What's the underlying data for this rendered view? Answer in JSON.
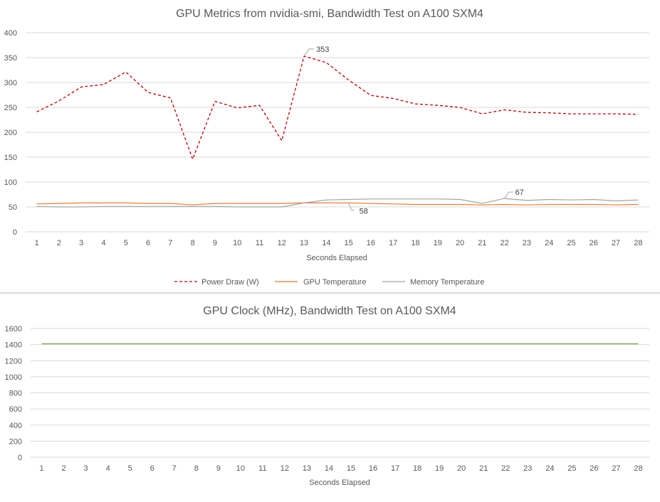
{
  "chart_data": [
    {
      "type": "line",
      "title": "GPU Metrics from nvidia-smi, Bandwidth Test on A100 SXM4",
      "xlabel": "Seconds Elapsed",
      "ylabel": "",
      "ylim": [
        0,
        400
      ],
      "yticks": [
        0,
        50,
        100,
        150,
        200,
        250,
        300,
        350,
        400
      ],
      "grid": true,
      "legend_position": "bottom",
      "categories": [
        1,
        2,
        3,
        4,
        5,
        6,
        7,
        8,
        9,
        10,
        11,
        12,
        13,
        14,
        15,
        16,
        17,
        18,
        19,
        20,
        21,
        22,
        23,
        24,
        25,
        26,
        27,
        28
      ],
      "series": [
        {
          "name": "Power Draw (W)",
          "color": "#c00000",
          "dash": "dashed",
          "values": [
            241,
            263,
            291,
            296,
            321,
            280,
            269,
            146,
            262,
            249,
            254,
            183,
            353,
            340,
            305,
            274,
            268,
            257,
            254,
            250,
            237,
            245,
            240,
            239,
            237,
            237,
            237,
            236
          ]
        },
        {
          "name": "GPU Temperature",
          "color": "#ed7d31",
          "dash": "solid",
          "values": [
            56,
            57,
            58,
            58,
            58,
            57,
            57,
            54,
            57,
            57,
            57,
            57,
            58,
            58,
            58,
            57,
            56,
            55,
            55,
            55,
            54,
            55,
            54,
            55,
            55,
            55,
            54,
            55
          ]
        },
        {
          "name": "Memory Temperature",
          "color": "#a5a5a5",
          "dash": "solid",
          "values": [
            51,
            50,
            50,
            51,
            51,
            51,
            51,
            51,
            51,
            50,
            50,
            50,
            58,
            64,
            65,
            66,
            66,
            66,
            66,
            65,
            57,
            67,
            63,
            65,
            64,
            65,
            62,
            64
          ]
        }
      ],
      "annotations": [
        {
          "series": "Power Draw (W)",
          "x": 13,
          "text": "353"
        },
        {
          "series": "GPU Temperature",
          "x": 15,
          "text": "58"
        },
        {
          "series": "Memory Temperature",
          "x": 22,
          "text": "67"
        }
      ]
    },
    {
      "type": "line",
      "title": "GPU Clock (MHz), Bandwidth Test on A100 SXM4",
      "xlabel": "Seconds Elapsed",
      "ylabel": "",
      "ylim": [
        0,
        1600
      ],
      "yticks": [
        0,
        200,
        400,
        600,
        800,
        1000,
        1200,
        1400,
        1600
      ],
      "grid": true,
      "legend_position": "none",
      "categories": [
        1,
        2,
        3,
        4,
        5,
        6,
        7,
        8,
        9,
        10,
        11,
        12,
        13,
        14,
        15,
        16,
        17,
        18,
        19,
        20,
        21,
        22,
        23,
        24,
        25,
        26,
        27,
        28
      ],
      "series": [
        {
          "color": "#70ad47",
          "dash": "solid",
          "values": [
            1410,
            1410,
            1410,
            1410,
            1410,
            1410,
            1410,
            1410,
            1410,
            1410,
            1410,
            1410,
            1410,
            1410,
            1410,
            1410,
            1410,
            1410,
            1410,
            1410,
            1410,
            1410,
            1410,
            1410,
            1410,
            1410,
            1410,
            1410
          ]
        }
      ]
    }
  ]
}
